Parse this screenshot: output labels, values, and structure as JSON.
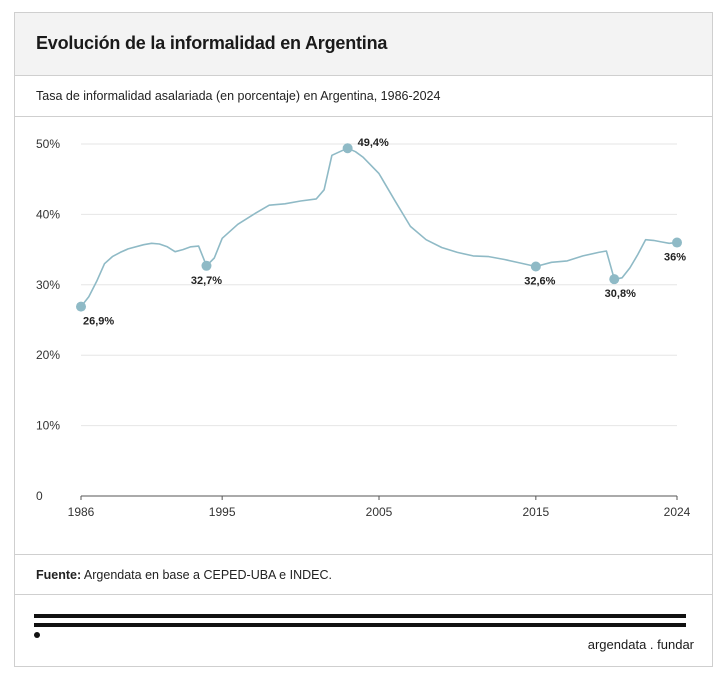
{
  "header": {
    "title": "Evolución de la informalidad en Argentina",
    "subtitle": "Tasa de informalidad asalariada (en porcentaje) en Argentina, 1986-2024"
  },
  "footer": {
    "source_label": "Fuente:",
    "source_text": " Argendata en base a CEPED-UBA e INDEC.",
    "brand": "argendata . fundar"
  },
  "colors": {
    "line": "#8fbac6",
    "grid": "#e6e6e6",
    "axis": "#555555"
  },
  "chart_data": {
    "type": "line",
    "title": "Evolución de la informalidad en Argentina",
    "subtitle": "Tasa de informalidad asalariada (en porcentaje) en Argentina, 1986-2024",
    "xlabel": "",
    "ylabel": "",
    "xlim": [
      1986,
      2024
    ],
    "ylim": [
      0,
      50
    ],
    "grid": true,
    "x_ticks": [
      1986,
      1995,
      2005,
      2015,
      2024
    ],
    "y_ticks": [
      {
        "value": 0,
        "label": "0"
      },
      {
        "value": 10,
        "label": "10%"
      },
      {
        "value": 20,
        "label": "20%"
      },
      {
        "value": 30,
        "label": "30%"
      },
      {
        "value": 40,
        "label": "40%"
      },
      {
        "value": 50,
        "label": "50%"
      }
    ],
    "series": [
      {
        "x": [
          1986,
          1986.5,
          1987,
          1987.5,
          1988,
          1988.5,
          1989,
          1990,
          1990.5,
          1991,
          1991.5,
          1992,
          1992.5,
          1993,
          1993.5,
          1994,
          1994.5,
          1995,
          1995.5,
          1996,
          1997,
          1998,
          1999,
          2000,
          2001,
          2001.5,
          2002,
          2002.5,
          2003,
          2003.5,
          2004,
          2005,
          2006,
          2007,
          2008,
          2009,
          2010,
          2011,
          2012,
          2013,
          2014,
          2015,
          2016,
          2017,
          2018,
          2019,
          2019.5,
          2020,
          2020.5,
          2021,
          2021.5,
          2022,
          2022.5,
          2023,
          2023.5,
          2024
        ],
        "values": [
          26.9,
          28.3,
          30.5,
          33.0,
          34.0,
          34.6,
          35.1,
          35.7,
          35.9,
          35.8,
          35.4,
          34.7,
          35.0,
          35.4,
          35.5,
          32.7,
          33.8,
          36.6,
          37.6,
          38.6,
          40.0,
          41.3,
          41.5,
          41.9,
          42.2,
          43.5,
          48.4,
          48.9,
          49.4,
          48.9,
          48.1,
          45.8,
          42.0,
          38.3,
          36.4,
          35.3,
          34.6,
          34.1,
          34.0,
          33.6,
          33.1,
          32.6,
          33.2,
          33.4,
          34.1,
          34.6,
          34.8,
          30.8,
          31.0,
          32.4,
          34.3,
          36.4,
          36.3,
          36.1,
          35.9,
          36.0
        ]
      }
    ],
    "labeled_points": [
      {
        "x": 1986,
        "y": 26.9,
        "label": "26,9%"
      },
      {
        "x": 1994,
        "y": 32.7,
        "label": "32,7%"
      },
      {
        "x": 2003,
        "y": 49.4,
        "label": "49,4%"
      },
      {
        "x": 2015,
        "y": 32.6,
        "label": "32,6%"
      },
      {
        "x": 2020,
        "y": 30.8,
        "label": "30,8%"
      },
      {
        "x": 2024,
        "y": 36.0,
        "label": "36%"
      }
    ]
  }
}
